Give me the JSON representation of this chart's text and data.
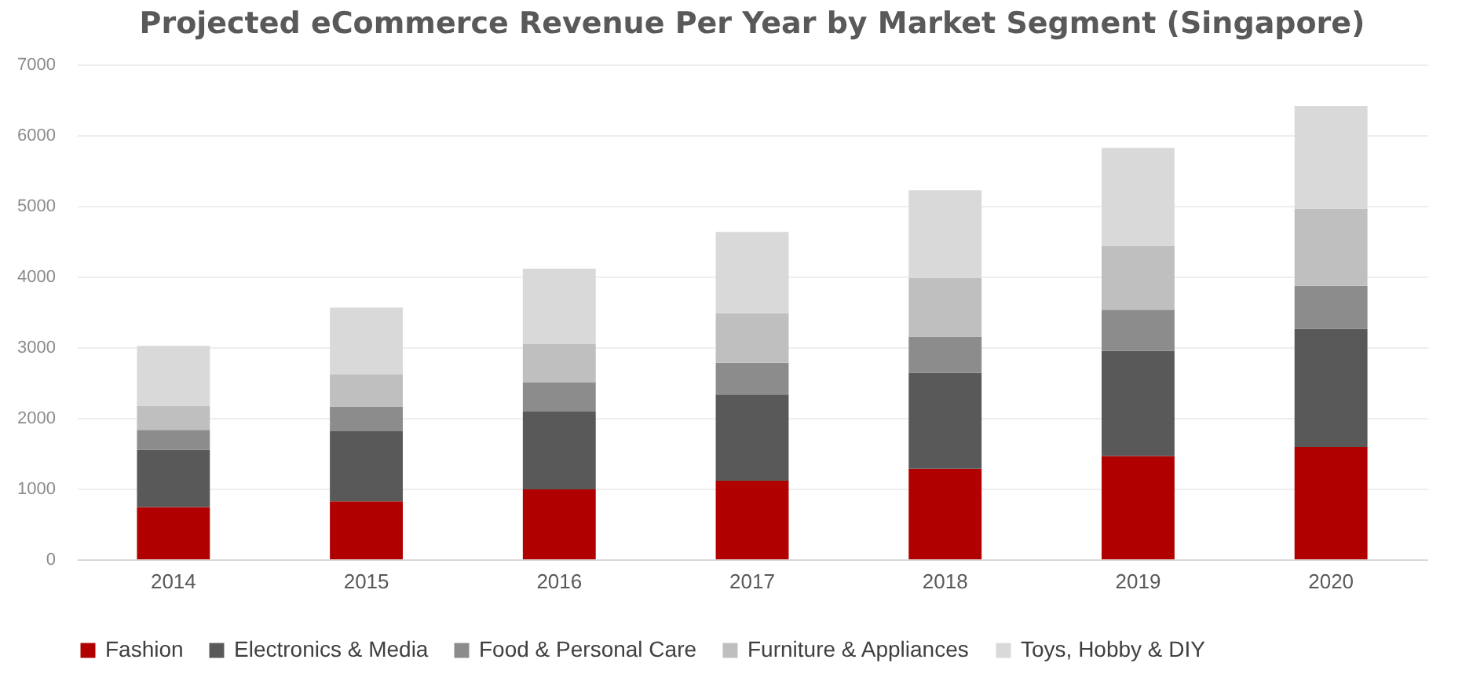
{
  "chart_data": {
    "type": "bar",
    "stacked": true,
    "title": "Projected eCommerce Revenue Per Year by Market Segment (Singapore)",
    "categories": [
      "2014",
      "2015",
      "2016",
      "2017",
      "2018",
      "2019",
      "2020"
    ],
    "series": [
      {
        "name": "Fashion",
        "color": "#b00000",
        "values": [
          740,
          820,
          990,
          1110,
          1280,
          1460,
          1590
        ]
      },
      {
        "name": "Electronics & Media",
        "color": "#595959",
        "values": [
          810,
          990,
          1100,
          1220,
          1360,
          1490,
          1670
        ]
      },
      {
        "name": "Food & Personal Care",
        "color": "#8c8c8c",
        "values": [
          280,
          350,
          410,
          450,
          510,
          580,
          610
        ]
      },
      {
        "name": "Furniture & Appliances",
        "color": "#bfbfbf",
        "values": [
          340,
          460,
          550,
          700,
          830,
          910,
          1090
        ]
      },
      {
        "name": "Toys, Hobby & DIY",
        "color": "#d9d9d9",
        "values": [
          850,
          940,
          1060,
          1150,
          1240,
          1380,
          1450
        ]
      }
    ],
    "ylim": [
      0,
      7000
    ],
    "yticks": [
      0,
      1000,
      2000,
      3000,
      4000,
      5000,
      6000,
      7000
    ],
    "grid": "y",
    "legend": "bottom"
  }
}
